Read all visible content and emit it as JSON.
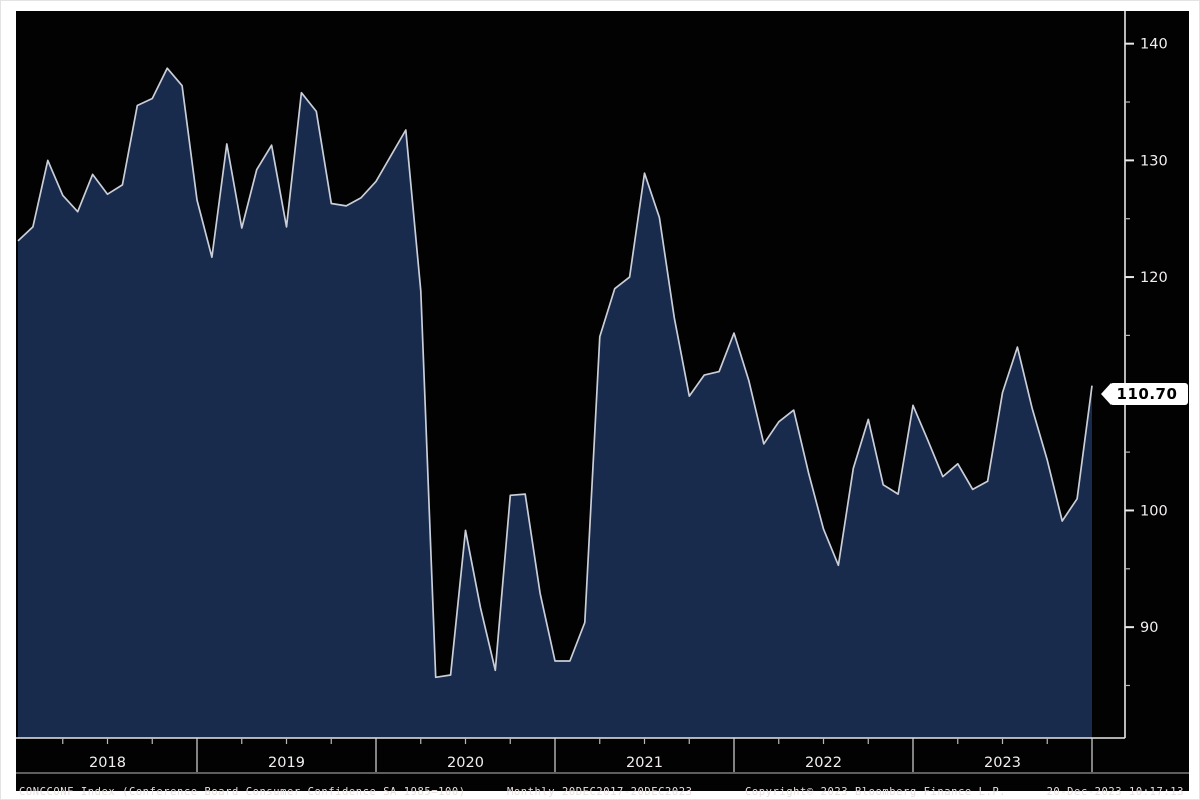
{
  "colors": {
    "page_margin": "#ffffff",
    "chart_background": "#020202",
    "area_fill": "#192b4c",
    "line": "#c9ced8",
    "axis": "#e8e8e8",
    "tick_minor": "#b9b9b9",
    "separator_line": "#bbbbbb",
    "label_text": "#f2eeee",
    "footer_text": "#e9dfdf",
    "badge_bg": "#ffffff",
    "badge_text": "#000000"
  },
  "chart_data": {
    "type": "area",
    "security": "CONCCONF Index",
    "title": "CONCCONF Index (Conference Board Consumer Confidence SA 1985=100)",
    "frequency": "Monthly",
    "date_range": "20DEC2017-20DEC2023",
    "x_months_start": "2017-12",
    "x_months_end": "2023-12",
    "values": [
      123.1,
      124.3,
      130.0,
      127.0,
      125.6,
      128.8,
      127.1,
      127.9,
      134.7,
      135.3,
      137.9,
      136.4,
      126.6,
      121.7,
      131.4,
      124.2,
      129.2,
      131.3,
      124.3,
      135.8,
      134.2,
      126.3,
      126.1,
      126.8,
      128.2,
      130.4,
      132.6,
      118.8,
      85.7,
      85.9,
      98.3,
      91.7,
      86.3,
      101.3,
      101.4,
      92.9,
      87.1,
      87.1,
      90.4,
      114.9,
      119.0,
      120.0,
      128.9,
      125.1,
      116.5,
      109.8,
      111.6,
      111.9,
      115.2,
      111.1,
      105.7,
      107.6,
      108.6,
      103.2,
      98.4,
      95.3,
      103.6,
      107.8,
      102.2,
      101.4,
      109.0,
      106.0,
      102.9,
      104.0,
      101.8,
      102.5,
      110.1,
      114.0,
      108.7,
      104.3,
      99.1,
      101.0,
      110.7
    ],
    "last_value": 110.7,
    "last_price_label": "110.70",
    "y_ticks_major": [
      90,
      100,
      110,
      120,
      130,
      140
    ],
    "y_ticks_minor": [
      85,
      95,
      105,
      115,
      125,
      135
    ],
    "ylim": [
      80.5,
      142.8
    ],
    "year_labels": [
      "2018",
      "2019",
      "2020",
      "2021",
      "2022",
      "2023"
    ],
    "grid": "off",
    "legend_position": "none"
  },
  "footer": {
    "security_line": "CONCCONF Index (Conference Board Consumer Confidence SA 1985=100)",
    "periodicity": "Monthly 20DEC2017-20DEC2023",
    "copyright": "Copyright© 2023 Bloomberg Finance L.P.",
    "timestamp": "20-Dec-2023 10:17:13"
  }
}
